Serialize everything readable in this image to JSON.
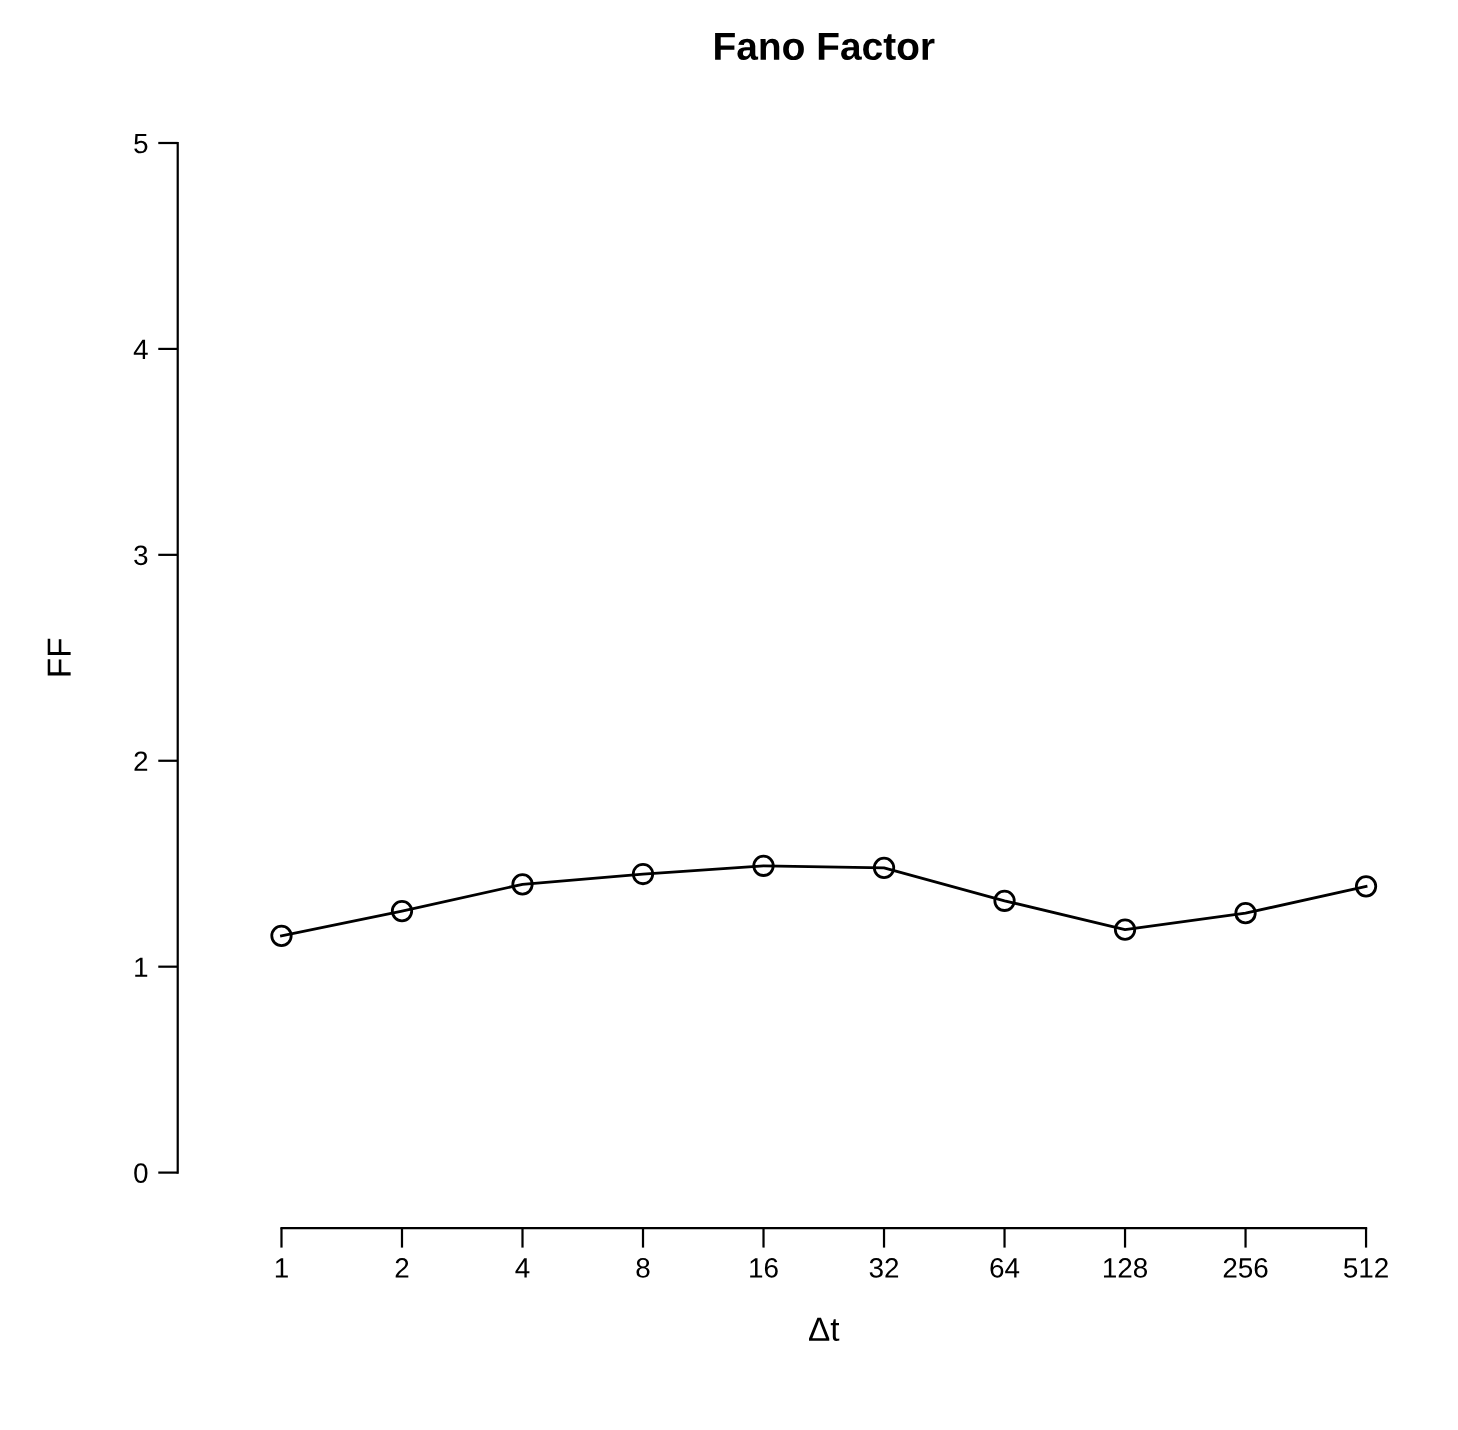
{
  "chart_data": {
    "type": "line",
    "title": "Fano Factor",
    "xlabel": "Δt",
    "ylabel": "FF",
    "categories": [
      "1",
      "2",
      "4",
      "8",
      "16",
      "32",
      "64",
      "128",
      "256",
      "512"
    ],
    "series": [
      {
        "color": "#000000",
        "values": [
          1.15,
          1.27,
          1.4,
          1.45,
          1.49,
          1.48,
          1.32,
          1.18,
          1.26,
          1.39
        ]
      }
    ],
    "ylim": [
      0,
      5
    ],
    "yticks": [
      0,
      1,
      2,
      3,
      4,
      5
    ],
    "marker": "circle",
    "line_style": "solid",
    "grid": false,
    "legend": false
  }
}
